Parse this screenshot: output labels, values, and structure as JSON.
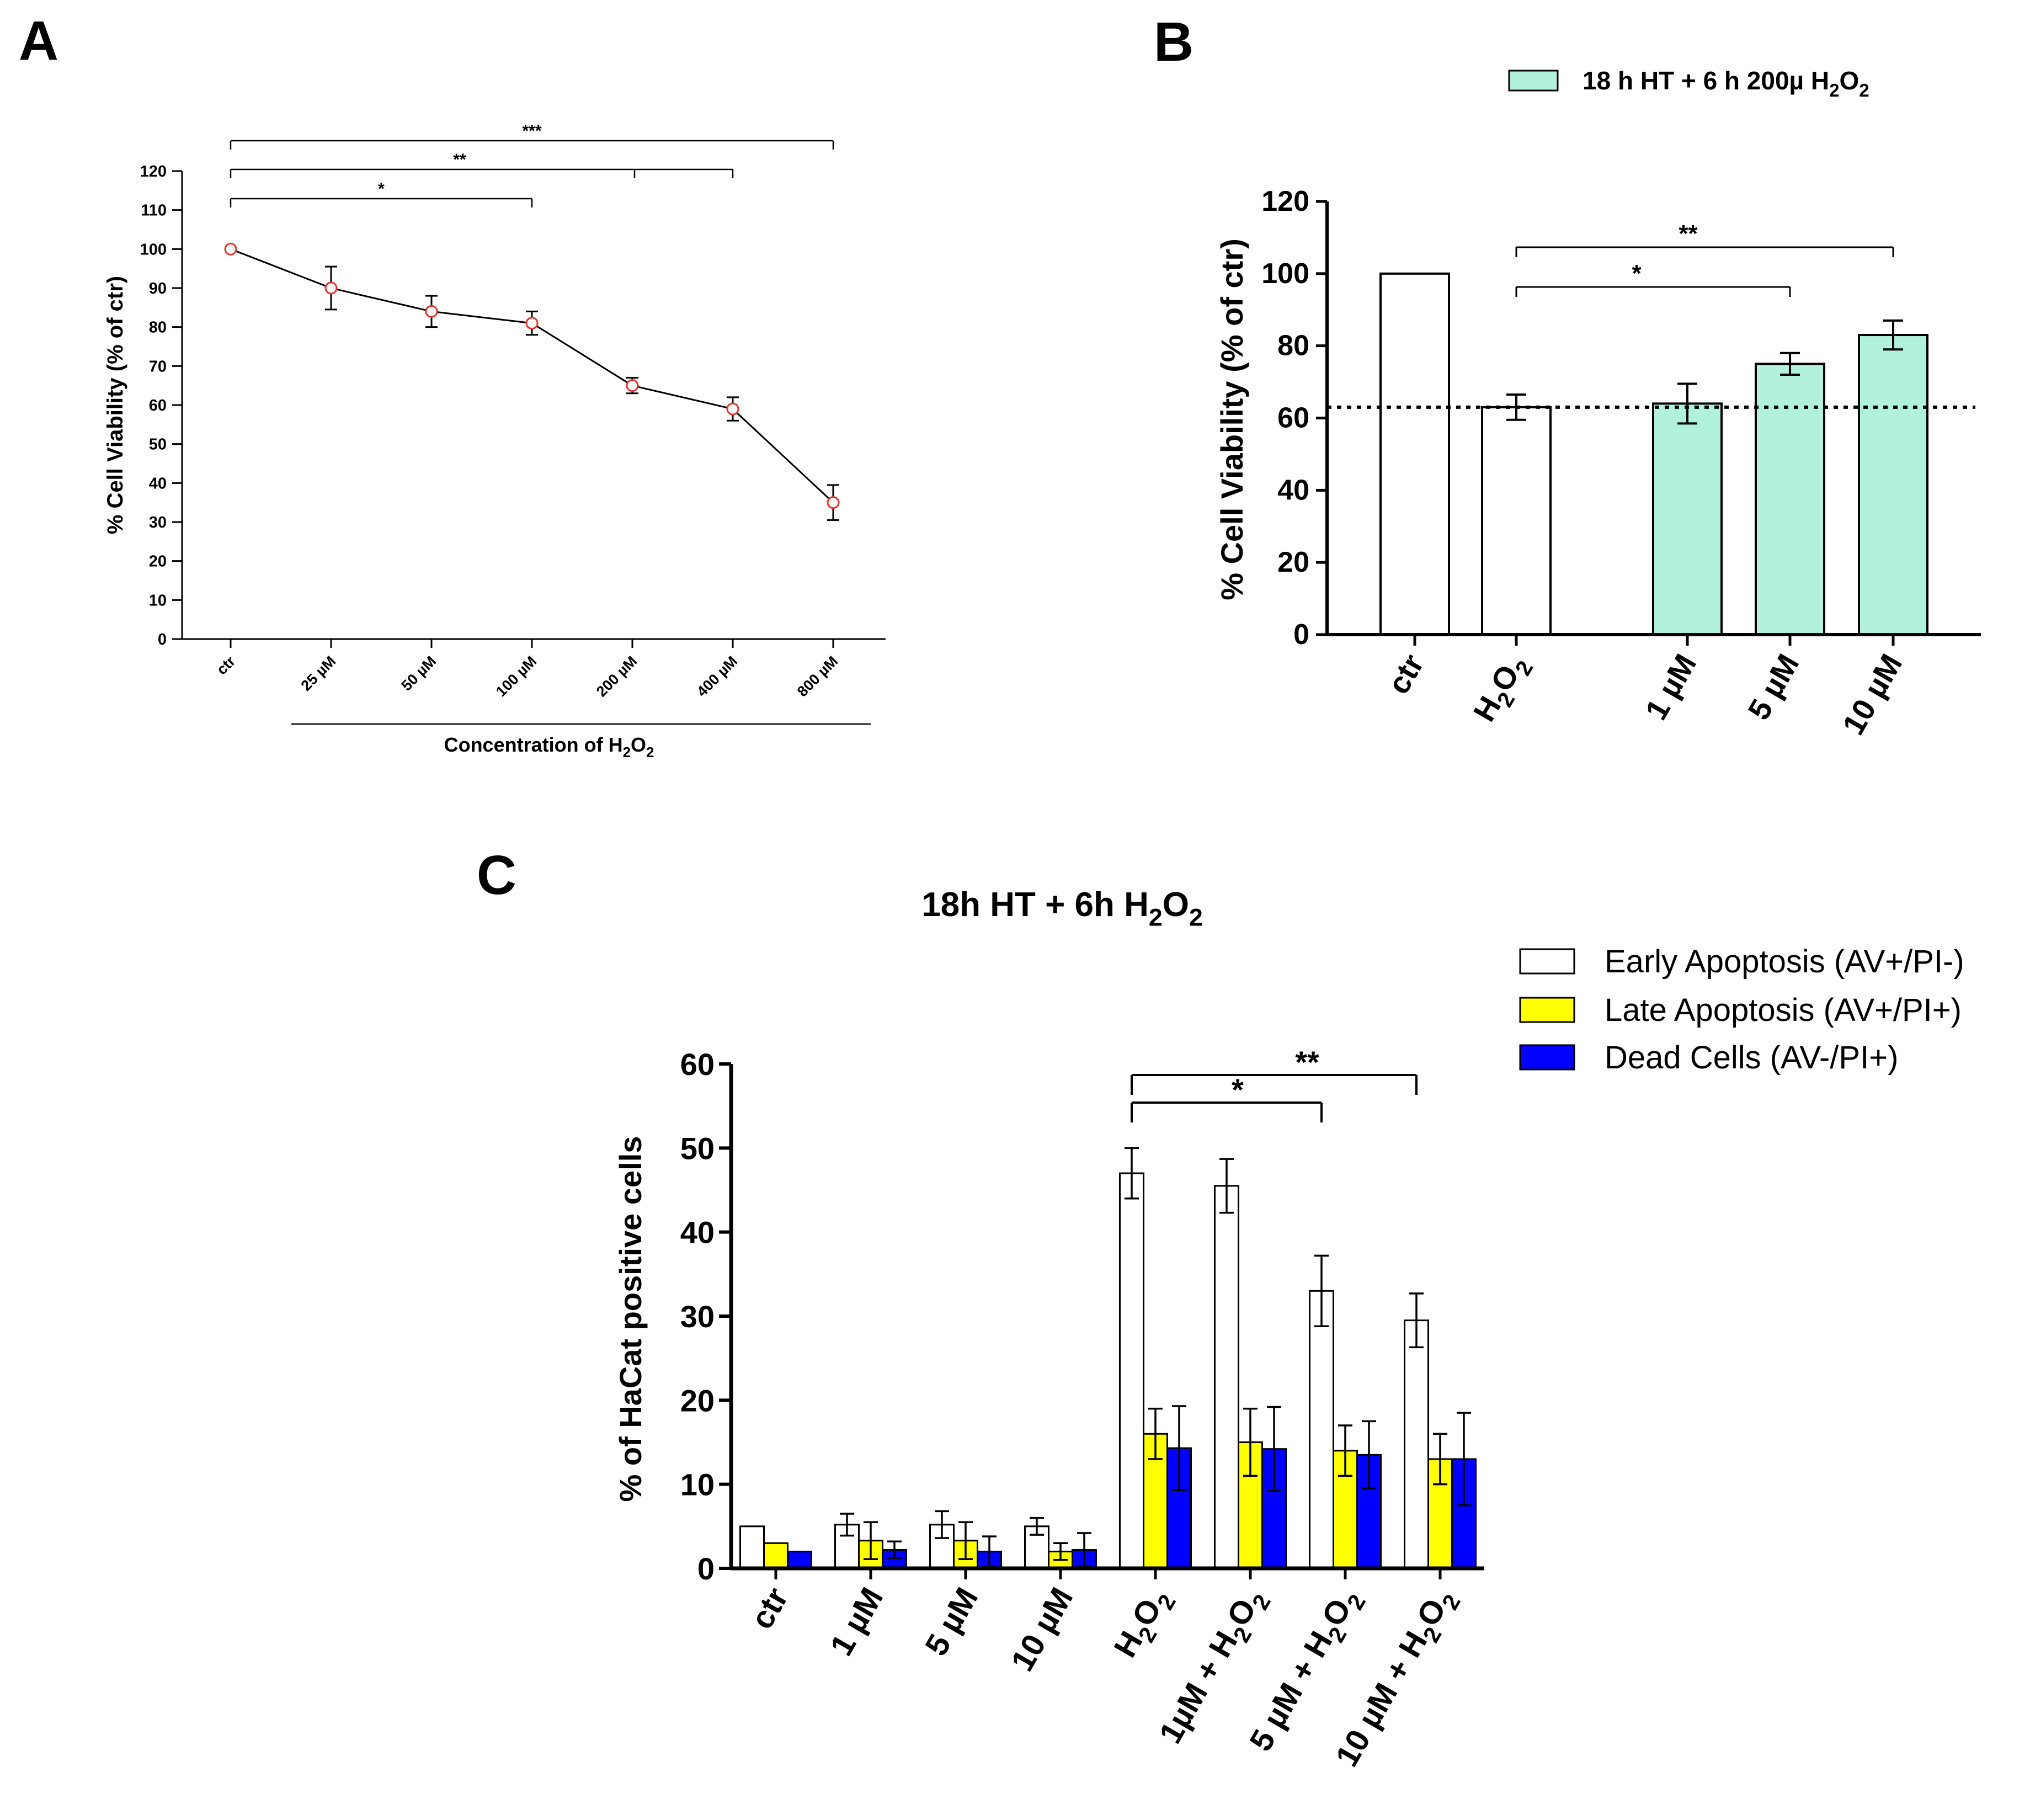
{
  "chart_data": [
    {
      "id": "A",
      "panel_label": "A",
      "type": "line",
      "categories": [
        "ctr",
        "25 µM",
        "50 µM",
        "100 µM",
        "200 µM",
        "400 µM",
        "800 µM"
      ],
      "values": [
        100,
        90,
        84,
        81,
        65,
        59,
        35
      ],
      "errors": [
        0,
        5.5,
        4,
        3,
        2,
        3,
        4.5
      ],
      "ylabel": "% Cell Viability (% of ctr)",
      "xlabel": "Concentration of H",
      "xlabel_sub1": "2",
      "xlabel_mid": "O",
      "xlabel_sub2": "2",
      "ylim": [
        0,
        120
      ],
      "yticks": [
        "0",
        "10",
        "20",
        "30",
        "40",
        "50",
        "60",
        "70",
        "80",
        "90",
        "100",
        "110",
        "120"
      ],
      "marker_color": "#e8312a",
      "significance": [
        {
          "from": 0,
          "to": 3,
          "label": "*"
        },
        {
          "from": 0,
          "to": 5,
          "label": "**"
        },
        {
          "from": 0,
          "to": 6,
          "label": "***"
        }
      ]
    },
    {
      "id": "B",
      "panel_label": "B",
      "type": "bar",
      "legend": {
        "text_main": "18 h HT + 6 h 200µ H",
        "sub1": "2",
        "mid": "O",
        "sub2": "2",
        "color": "#b2f2dc"
      },
      "categories": [
        "ctr",
        "H2O2",
        "1 µM",
        "5 µM",
        "10 µM"
      ],
      "category_labels": [
        {
          "text": "ctr"
        },
        {
          "text": "H",
          "sub1": "2",
          "mid": "O",
          "sub2": "2"
        },
        {
          "text": "1 µM"
        },
        {
          "text": "5 µM"
        },
        {
          "text": "10 µM"
        }
      ],
      "values": [
        100,
        63,
        64,
        75,
        83
      ],
      "errors": [
        0,
        3.5,
        5.5,
        3,
        4
      ],
      "colors": [
        "#ffffff",
        "#ffffff",
        "#b2f2dc",
        "#b2f2dc",
        "#b2f2dc"
      ],
      "ylabel": "% Cell Viability (% of ctr)",
      "ylim": [
        0,
        120
      ],
      "yticks": [
        "0",
        "20",
        "40",
        "60",
        "80",
        "100",
        "120"
      ],
      "reference_line": 63,
      "significance": [
        {
          "from": 1,
          "to": 3,
          "label": "*"
        },
        {
          "from": 1,
          "to": 4,
          "label": "**"
        }
      ]
    },
    {
      "id": "C",
      "panel_label": "C",
      "type": "bar",
      "title": {
        "text_main": "18h HT + 6h H",
        "sub1": "2",
        "mid": "O",
        "sub2": "2"
      },
      "categories": [
        "ctr",
        "1 µM",
        "5 µM",
        "10 µM",
        "H2O2",
        "1µM + H2O2",
        "5 µM + H2O2",
        "10 µM + H2O2"
      ],
      "category_labels": [
        {
          "text": "ctr"
        },
        {
          "text": "1 µM"
        },
        {
          "text": "5 µM"
        },
        {
          "text": "10 µM"
        },
        {
          "text": "H",
          "sub1": "2",
          "mid": "O",
          "sub2": "2"
        },
        {
          "text": "1µM + H",
          "sub1": "2",
          "mid": "O",
          "sub2": "2"
        },
        {
          "text": "5 µM + H",
          "sub1": "2",
          "mid": "O",
          "sub2": "2"
        },
        {
          "text": "10 µM + H",
          "sub1": "2",
          "mid": "O",
          "sub2": "2"
        }
      ],
      "series": [
        {
          "name": "Early Apoptosis (AV+/PI-)",
          "color": "#ffffff",
          "values": [
            5,
            5.2,
            5.2,
            5,
            47,
            45.5,
            33,
            29.5
          ],
          "errors": [
            0,
            1.3,
            1.6,
            1,
            3,
            3.2,
            4.2,
            3.2
          ]
        },
        {
          "name": "Late Apoptosis (AV+/PI+)",
          "color": "#ffff00",
          "values": [
            3,
            3.3,
            3.3,
            2,
            16,
            15,
            14,
            13
          ],
          "errors": [
            0,
            2.2,
            2.2,
            1,
            3,
            4,
            3,
            3
          ]
        },
        {
          "name": "Dead Cells (AV-/PI+)",
          "color": "#0000ff",
          "values": [
            2,
            2.2,
            2,
            2.2,
            14.3,
            14.2,
            13.5,
            13
          ],
          "errors": [
            0,
            1,
            1.8,
            2,
            5,
            5,
            4,
            5.5
          ]
        }
      ],
      "ylabel": "% of HaCat positive cells",
      "ylim": [
        0,
        60
      ],
      "yticks": [
        "0",
        "10",
        "20",
        "30",
        "40",
        "50",
        "60"
      ],
      "significance": [
        {
          "from": 4,
          "to": 6,
          "label": "*"
        },
        {
          "from": 4,
          "to": 7,
          "label": "**"
        }
      ]
    }
  ]
}
